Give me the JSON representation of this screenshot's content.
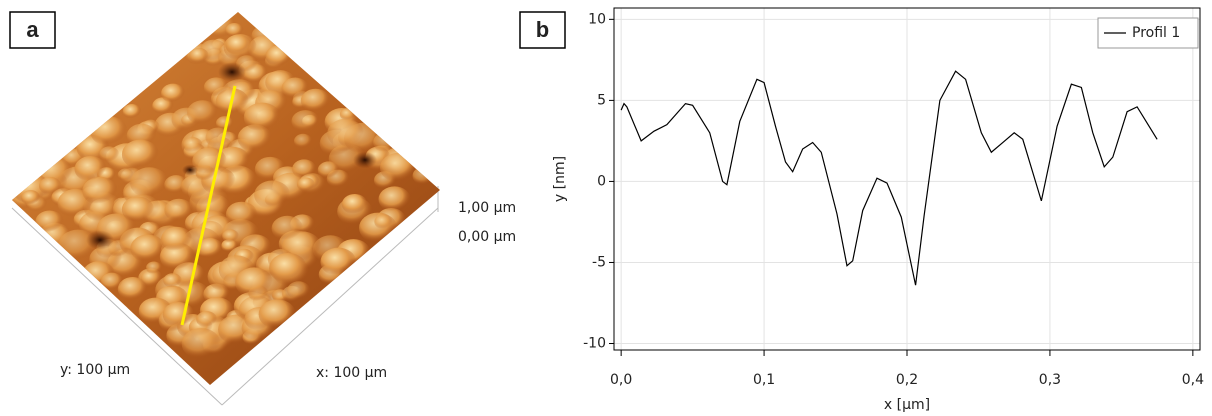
{
  "panel_labels": [
    "a",
    "b"
  ],
  "afm_image": {
    "z_labels": [
      "1,00 µm",
      "0,00 µm"
    ],
    "y_label": "y: 100 µm",
    "x_label": "x: 100 µm"
  },
  "chart_data": {
    "type": "line",
    "xlabel": "x [µm]",
    "ylabel": "y [nm]",
    "x": [
      0,
      0.002,
      0.004,
      0.014,
      0.023,
      0.032,
      0.045,
      0.05,
      0.062,
      0.071,
      0.074,
      0.083,
      0.095,
      0.1,
      0.108,
      0.115,
      0.12,
      0.127,
      0.134,
      0.14,
      0.151,
      0.158,
      0.162,
      0.169,
      0.179,
      0.186,
      0.196,
      0.206,
      0.212,
      0.223,
      0.234,
      0.241,
      0.252,
      0.259,
      0.267,
      0.275,
      0.281,
      0.294,
      0.305,
      0.315,
      0.322,
      0.33,
      0.338,
      0.344,
      0.354,
      0.361,
      0.375
    ],
    "series": [
      {
        "name": "Profil 1",
        "color": "#000000",
        "values": [
          4.4,
          4.8,
          4.6,
          2.5,
          3.1,
          3.5,
          4.8,
          4.7,
          3.0,
          0.0,
          -0.2,
          3.7,
          6.3,
          6.1,
          3.4,
          1.2,
          0.6,
          2.0,
          2.4,
          1.8,
          -2.0,
          -5.2,
          -4.9,
          -1.8,
          0.2,
          -0.1,
          -2.2,
          -6.4,
          -2.1,
          5.0,
          6.8,
          6.3,
          3.0,
          1.8,
          2.4,
          3.0,
          2.6,
          -1.2,
          3.4,
          6.0,
          5.8,
          3.0,
          0.9,
          1.5,
          4.3,
          4.6,
          2.6
        ]
      }
    ],
    "xlim": [
      -0.005,
      0.405
    ],
    "ylim": [
      -10.4,
      10.7
    ],
    "xticks": [
      {
        "value": 0,
        "label": "0,0"
      },
      {
        "value": 0.1,
        "label": "0,1"
      },
      {
        "value": 0.2,
        "label": "0,2"
      },
      {
        "value": 0.3,
        "label": "0,3"
      },
      {
        "value": 0.4,
        "label": "0,4"
      }
    ],
    "yticks": [
      10,
      5,
      0,
      -5,
      -10
    ],
    "grid": true,
    "legend": "upper right"
  }
}
